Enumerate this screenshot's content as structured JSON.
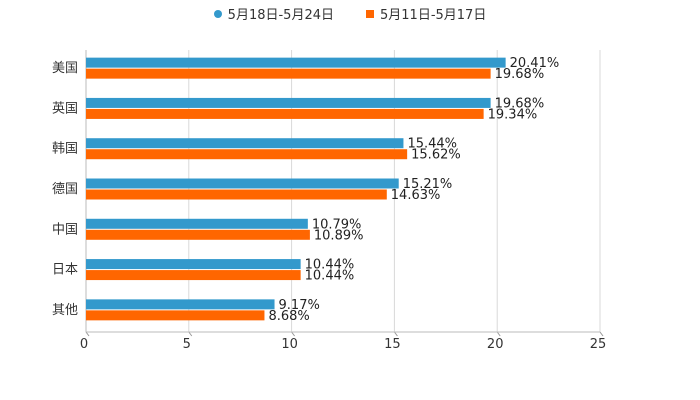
{
  "chart_data": {
    "type": "bar",
    "orientation": "horizontal",
    "categories": [
      "美国",
      "英国",
      "韩国",
      "德国",
      "中国",
      "日本",
      "其他"
    ],
    "series": [
      {
        "name": "5月18日-5月24日",
        "color": "#3399cc",
        "values": [
          20.41,
          19.68,
          15.44,
          15.21,
          10.79,
          10.44,
          9.17
        ],
        "labels": [
          "20.41%",
          "19.68%",
          "15.44%",
          "15.21%",
          "10.79%",
          "10.44%",
          "9.17%"
        ]
      },
      {
        "name": "5月11日-5月17日",
        "color": "#ff6600",
        "values": [
          19.68,
          19.34,
          15.62,
          14.63,
          10.89,
          10.44,
          8.68
        ],
        "labels": [
          "19.68%",
          "19.34%",
          "15.62%",
          "14.63%",
          "10.89%",
          "10.44%",
          "8.68%"
        ]
      }
    ],
    "xlim": [
      0,
      25
    ],
    "xticks": [
      "0",
      "5",
      "10",
      "15",
      "20",
      "25"
    ],
    "grid": true,
    "legend_position": "top-center"
  }
}
